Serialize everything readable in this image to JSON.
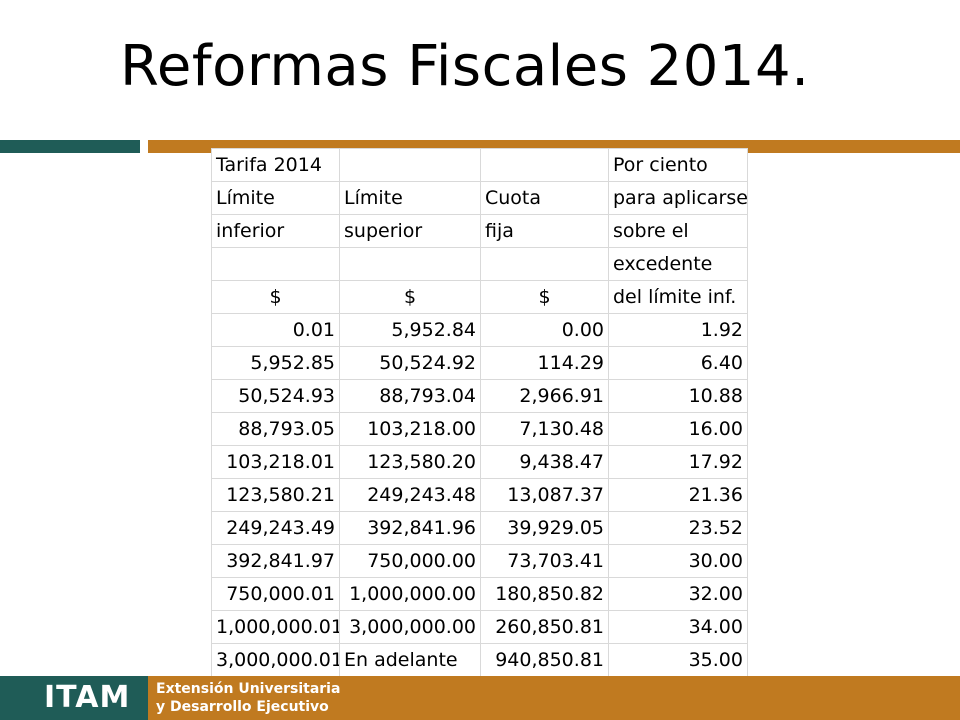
{
  "title": "Reformas Fiscales 2014.",
  "colors": {
    "brand_green": "#1f5c57",
    "brand_orange": "#c07a20"
  },
  "table": {
    "header_rows": [
      [
        "Tarifa 2014",
        "",
        "",
        "Por ciento"
      ],
      [
        "Límite",
        "Límite",
        "Cuota",
        "para aplicarse"
      ],
      [
        "inferior",
        "superior",
        "fija",
        "sobre el"
      ],
      [
        "",
        "",
        "",
        "excedente"
      ],
      [
        "$",
        "$",
        "$",
        "del límite inf."
      ]
    ],
    "rows": [
      [
        "0.01",
        "5,952.84",
        "0.00",
        "1.92"
      ],
      [
        "5,952.85",
        "50,524.92",
        "114.29",
        "6.40"
      ],
      [
        "50,524.93",
        "88,793.04",
        "2,966.91",
        "10.88"
      ],
      [
        "88,793.05",
        "103,218.00",
        "7,130.48",
        "16.00"
      ],
      [
        "103,218.01",
        "123,580.20",
        "9,438.47",
        "17.92"
      ],
      [
        "123,580.21",
        "249,243.48",
        "13,087.37",
        "21.36"
      ],
      [
        "249,243.49",
        "392,841.96",
        "39,929.05",
        "23.52"
      ],
      [
        "392,841.97",
        "750,000.00",
        "73,703.41",
        "30.00"
      ],
      [
        "750,000.01",
        "1,000,000.00",
        "180,850.82",
        "32.00"
      ],
      [
        "1,000,000.01",
        "3,000,000.00",
        "260,850.81",
        "34.00"
      ],
      [
        "3,000,000.01",
        "En adelante",
        "940,850.81",
        "35.00"
      ]
    ]
  },
  "footer": {
    "logo": "ITAM",
    "line1": "Extensión Universitaria",
    "line2": "y Desarrollo Ejecutivo"
  }
}
